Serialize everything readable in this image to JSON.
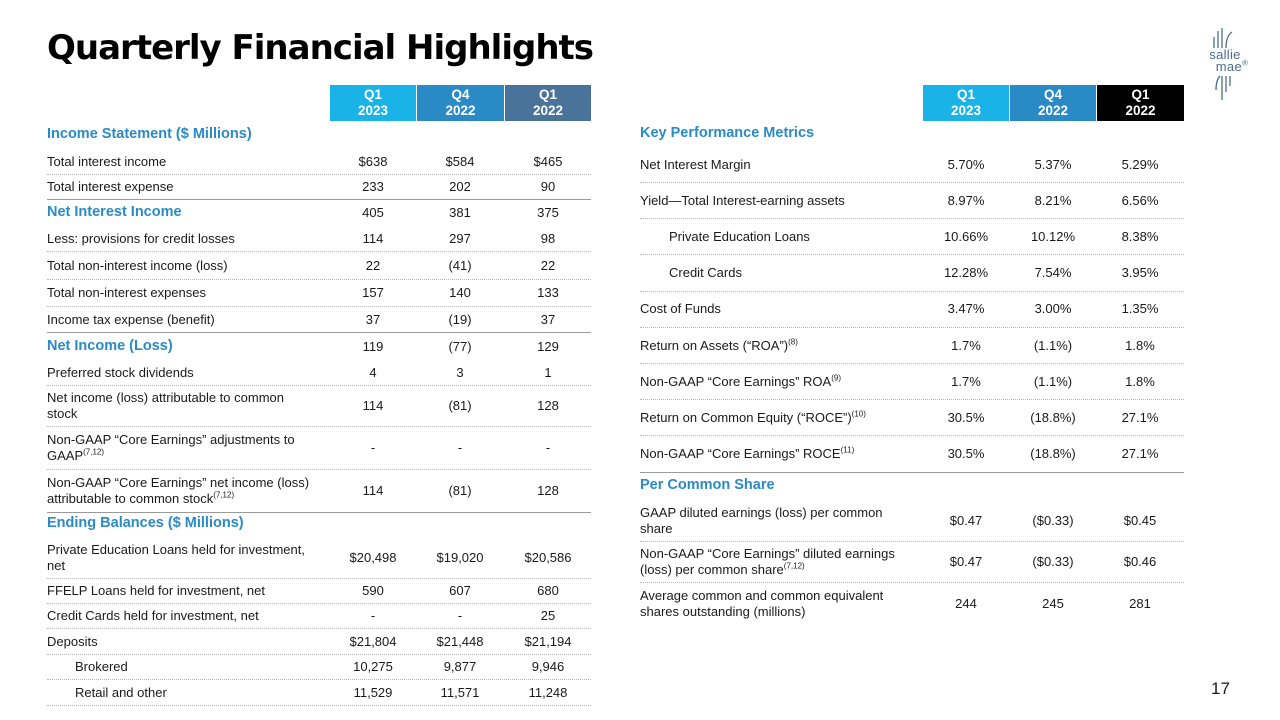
{
  "title": "Quarterly Financial Highlights",
  "page_number": "17",
  "logo": {
    "line1": "sallie",
    "line2": "mae",
    "mark": "®"
  },
  "colors": {
    "q1_2023": "#1ab3e8",
    "q4_2022": "#2a8ac6",
    "q1_2022_left": "#4a7399",
    "q1_2022_right": "#000000",
    "section": "#2a8ac6"
  },
  "left": {
    "headers": [
      {
        "q": "Q1",
        "y": "2023"
      },
      {
        "q": "Q4",
        "y": "2022"
      },
      {
        "q": "Q1",
        "y": "2022"
      }
    ],
    "income_title": "Income Statement ($ Millions)",
    "rows1": [
      {
        "label": "Total interest income",
        "v": [
          "$638",
          "$584",
          "$465"
        ]
      },
      {
        "label": "Total interest expense",
        "v": [
          "233",
          "202",
          "90"
        ]
      }
    ],
    "nii": {
      "label": "Net Interest Income",
      "v": [
        "405",
        "381",
        "375"
      ]
    },
    "rows2": [
      {
        "label": "Less: provisions for credit losses",
        "v": [
          "114",
          "297",
          "98"
        ]
      },
      {
        "label": "Total non-interest income (loss)",
        "v": [
          "22",
          "(41)",
          "22"
        ]
      },
      {
        "label": "Total non-interest expenses",
        "v": [
          "157",
          "140",
          "133"
        ]
      },
      {
        "label": "Income tax expense (benefit)",
        "v": [
          "37",
          "(19)",
          "37"
        ]
      }
    ],
    "ni": {
      "label": "Net Income (Loss)",
      "v": [
        "119",
        "(77)",
        "129"
      ]
    },
    "rows3": [
      {
        "label": "Preferred stock dividends",
        "v": [
          "4",
          "3",
          "1"
        ]
      },
      {
        "label": "Net income (loss) attributable to common stock",
        "v": [
          "114",
          "(81)",
          "128"
        ]
      },
      {
        "label": "Non-GAAP “Core Earnings” adjustments to GAAP",
        "sup": "(7,12)",
        "v": [
          "-",
          "-",
          "-"
        ]
      },
      {
        "label": "Non-GAAP “Core Earnings” net income (loss) attributable to common stock",
        "sup": "(7,12)",
        "v": [
          "114",
          "(81)",
          "128"
        ]
      }
    ],
    "balances_title": "Ending Balances ($ Millions)",
    "rows4": [
      {
        "label": "Private Education Loans held for investment, net",
        "v": [
          "$20,498",
          "$19,020",
          "$20,586"
        ]
      },
      {
        "label": "FFELP Loans held for investment, net",
        "v": [
          "590",
          "607",
          "680"
        ]
      },
      {
        "label": "Credit Cards held for investment, net",
        "v": [
          "-",
          "-",
          "25"
        ]
      },
      {
        "label": "Deposits",
        "v": [
          "$21,804",
          "$21,448",
          "$21,194"
        ]
      },
      {
        "label": "Brokered",
        "v": [
          "10,275",
          "9,877",
          "9,946"
        ]
      },
      {
        "label": "Retail and other",
        "v": [
          "11,529",
          "11,571",
          "11,248"
        ]
      }
    ]
  },
  "right": {
    "headers": [
      {
        "q": "Q1",
        "y": "2023"
      },
      {
        "q": "Q4",
        "y": "2022"
      },
      {
        "q": "Q1",
        "y": "2022"
      }
    ],
    "kpm_title": "Key Performance Metrics",
    "kpm_rows": [
      {
        "label": "Net Interest Margin",
        "v": [
          "5.70%",
          "5.37%",
          "5.29%"
        ]
      },
      {
        "label": "Yield—Total Interest-earning assets",
        "v": [
          "8.97%",
          "8.21%",
          "6.56%"
        ]
      },
      {
        "label": "Private Education Loans",
        "v": [
          "10.66%",
          "10.12%",
          "8.38%"
        ]
      },
      {
        "label": "Credit Cards",
        "v": [
          "12.28%",
          "7.54%",
          "3.95%"
        ]
      },
      {
        "label": "Cost of Funds",
        "v": [
          "3.47%",
          "3.00%",
          "1.35%"
        ]
      },
      {
        "label": "Return on Assets (“ROA”)",
        "sup": "(8)",
        "v": [
          "1.7%",
          "(1.1%)",
          "1.8%"
        ]
      },
      {
        "label": "Non-GAAP “Core Earnings” ROA",
        "sup": "(9)",
        "v": [
          "1.7%",
          "(1.1%)",
          "1.8%"
        ]
      },
      {
        "label": "Return on Common Equity (“ROCE”)",
        "sup": "(10)",
        "v": [
          "30.5%",
          "(18.8%)",
          "27.1%"
        ]
      },
      {
        "label": "Non-GAAP “Core Earnings” ROCE",
        "sup": "(11)",
        "v": [
          "30.5%",
          "(18.8%)",
          "27.1%"
        ]
      }
    ],
    "pcs_title": "Per Common Share",
    "pcs_rows": [
      {
        "label": "GAAP diluted earnings (loss) per common share",
        "v": [
          "$0.47",
          "($0.33)",
          "$0.45"
        ]
      },
      {
        "label": "Non-GAAP “Core Earnings” diluted earnings (loss) per common share",
        "sup": "(7,12)",
        "v": [
          "$0.47",
          "($0.33)",
          "$0.46"
        ]
      },
      {
        "label": "Average common and common equivalent shares outstanding (millions)",
        "v": [
          "244",
          "245",
          "281"
        ]
      }
    ]
  }
}
